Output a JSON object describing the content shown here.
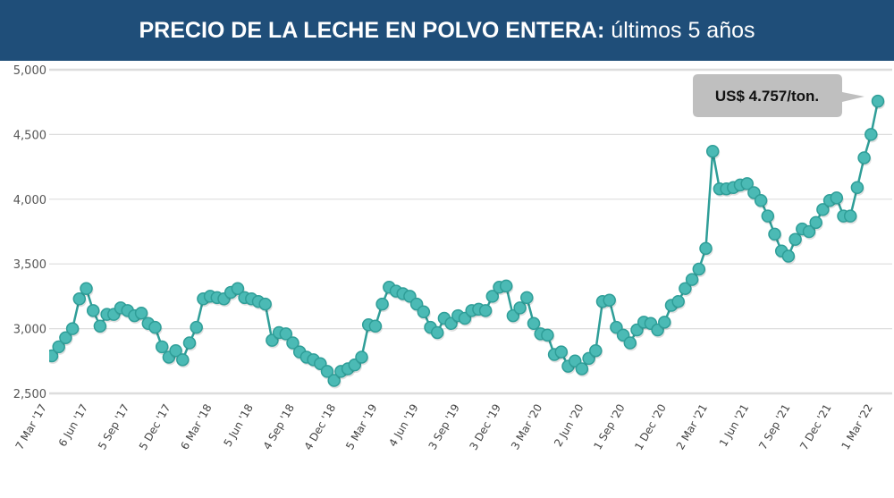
{
  "title": {
    "bold": "PRECIO DE LA LECHE EN POLVO ENTERA:",
    "regular": " últimos 5 años"
  },
  "colors": {
    "title_bar": "#1f4e79",
    "series": "#4bbab5",
    "series_stroke": "#2f9e98",
    "callout_bg": "#bfbfbf",
    "grid": "#dddddd"
  },
  "chart_data": {
    "type": "line",
    "title": "PRECIO DE LA LECHE EN POLVO ENTERA: últimos 5 años",
    "xlabel": "",
    "ylabel": "",
    "ylim": [
      2500,
      5000
    ],
    "yticks": [
      2500,
      3000,
      3500,
      4000,
      4500,
      5000
    ],
    "ytick_labels": [
      "2,500",
      "3,000",
      "3,500",
      "4,000",
      "4,500",
      "5,000"
    ],
    "grid": true,
    "markers": true,
    "xtick_labels": [
      "7 Mar '17",
      "6 Jun '17",
      "5 Sep '17",
      "5 Dec '17",
      "6 Mar '18",
      "5 Jun '18",
      "4 Sep '18",
      "4 Dec '18",
      "5 Mar '19",
      "4 Jun '19",
      "3 Sep '19",
      "3 Dec '19",
      "3 Mar '20",
      "2 Jun '20",
      "1 Sep '20",
      "1 Dec '20",
      "2 Mar '21",
      "1 Jun '21",
      "7 Sep '21",
      "7 Dec '21",
      "1 Mar '22"
    ],
    "xtick_every": 6,
    "values": [
      2800,
      2790,
      2860,
      2930,
      3000,
      3230,
      3310,
      3140,
      3020,
      3110,
      3110,
      3160,
      3140,
      3100,
      3120,
      3040,
      3010,
      2860,
      2780,
      2830,
      2760,
      2890,
      3010,
      3230,
      3250,
      3240,
      3230,
      3280,
      3310,
      3240,
      3230,
      3210,
      3190,
      2910,
      2970,
      2960,
      2890,
      2820,
      2780,
      2760,
      2730,
      2670,
      2600,
      2670,
      2690,
      2720,
      2780,
      3030,
      3020,
      3190,
      3320,
      3290,
      3270,
      3250,
      3190,
      3130,
      3010,
      2970,
      3080,
      3040,
      3100,
      3080,
      3140,
      3150,
      3140,
      3250,
      3320,
      3330,
      3100,
      3160,
      3240,
      3040,
      2960,
      2950,
      2800,
      2820,
      2710,
      2750,
      2690,
      2770,
      2830,
      3210,
      3220,
      3010,
      2950,
      2890,
      2990,
      3050,
      3040,
      2990,
      3050,
      3180,
      3210,
      3310,
      3380,
      3460,
      3620,
      4370,
      4080,
      4080,
      4090,
      4110,
      4120,
      4050,
      3990,
      3870,
      3730,
      3600,
      3560,
      3690,
      3770,
      3750,
      3820,
      3920,
      3990,
      4010,
      3870,
      3870,
      4090,
      4320,
      4500,
      4757
    ],
    "annotations": [
      {
        "text": "US$ 4.757/ton.",
        "target": "last"
      }
    ]
  }
}
